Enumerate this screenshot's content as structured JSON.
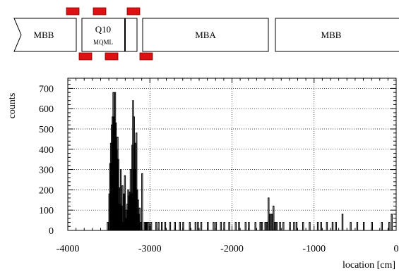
{
  "magnets": {
    "mbb_left": "MBB",
    "q10": "Q10",
    "mqml": "MQML",
    "mba": "MBA",
    "mbb_right": "MBB"
  },
  "colors": {
    "magnet_fill": "#ffffff",
    "magnet_stroke": "#000000",
    "bpm_fill": "#dd1111",
    "bpm_stroke": "#880000",
    "histogram": "#000000",
    "grid": "#000000"
  },
  "chart_data": {
    "type": "histogram",
    "xlabel": "location [cm]",
    "ylabel": "counts",
    "xlim": [
      -4000,
      0
    ],
    "ylim": [
      0,
      750
    ],
    "x_ticks": [
      -4000,
      -3000,
      -2000,
      -1000,
      0
    ],
    "x_tick_labels": [
      "-4000",
      "-3000",
      "-2000",
      "-1000",
      "0"
    ],
    "y_ticks": [
      0,
      100,
      200,
      300,
      400,
      500,
      600,
      700
    ],
    "y_tick_labels": [
      "0",
      "100",
      "200",
      "300",
      "400",
      "500",
      "600",
      "700"
    ],
    "grid": true,
    "series": [
      {
        "x": [
          -3520,
          -3500,
          -3490,
          -3480,
          -3470,
          -3460,
          -3450,
          -3440,
          -3430,
          -3420,
          -3410,
          -3400,
          -3390,
          -3380,
          -3370,
          -3360,
          -3350,
          -3340,
          -3330,
          -3320,
          -3310,
          -3300,
          -3290,
          -3280,
          -3270,
          -3260,
          -3250,
          -3240,
          -3230,
          -3220,
          -3210,
          -3200,
          -3190,
          -3180,
          -3170,
          -3160,
          -3150,
          -3140,
          -3130,
          -3120,
          -3110,
          -3100,
          -3090,
          -3080,
          -3070,
          -3060,
          -3050,
          -3040,
          -3030,
          -3020,
          -3010,
          -2990,
          -2950,
          -2930,
          -2900,
          -2880,
          -2860,
          -2840,
          -2820,
          -2760,
          -2730,
          -2700,
          -2670,
          -2640,
          -2600,
          -2560,
          -2520,
          -2480,
          -2450,
          -2420,
          -2380,
          -2340,
          -2300,
          -2260,
          -2230,
          -2200,
          -2170,
          -2140,
          -2100,
          -2060,
          -2040,
          -2000,
          -1960,
          -1920,
          -1880,
          -1840,
          -1800,
          -1760,
          -1720,
          -1690,
          -1660,
          -1640,
          -1620,
          -1600,
          -1580,
          -1560,
          -1540,
          -1520,
          -1500,
          -1480,
          -1460,
          -1440,
          -1420,
          -1380,
          -1340,
          -1300,
          -1280,
          -1250,
          -1220,
          -1180,
          -1140,
          -1100,
          -1060,
          -1000,
          -960,
          -920,
          -880,
          -850,
          -820,
          -780,
          -740,
          -700,
          -660,
          -600,
          -560,
          -520,
          -480,
          -400,
          -350,
          -300,
          -260,
          -180,
          -120,
          -90,
          -60,
          -10
        ],
        "counts": [
          40,
          180,
          330,
          430,
          520,
          560,
          680,
          560,
          680,
          530,
          400,
          460,
          350,
          210,
          130,
          300,
          120,
          220,
          40,
          180,
          270,
          60,
          100,
          130,
          200,
          170,
          190,
          300,
          180,
          420,
          640,
          560,
          300,
          430,
          480,
          200,
          150,
          80,
          110,
          40,
          0,
          280,
          0,
          0,
          40,
          40,
          40,
          40,
          0,
          40,
          0,
          40,
          0,
          40,
          40,
          0,
          40,
          0,
          40,
          40,
          0,
          40,
          0,
          40,
          40,
          0,
          40,
          0,
          40,
          40,
          40,
          0,
          40,
          0,
          40,
          40,
          0,
          40,
          40,
          0,
          40,
          0,
          40,
          40,
          0,
          40,
          40,
          0,
          40,
          0,
          40,
          40,
          0,
          40,
          40,
          160,
          80,
          80,
          120,
          40,
          40,
          0,
          40,
          40,
          0,
          40,
          0,
          40,
          40,
          0,
          40,
          0,
          40,
          0,
          40,
          40,
          0,
          40,
          0,
          40,
          40,
          0,
          80,
          0,
          40,
          0,
          40,
          40,
          0,
          40,
          0,
          40,
          0,
          40,
          80
        ]
      }
    ]
  }
}
